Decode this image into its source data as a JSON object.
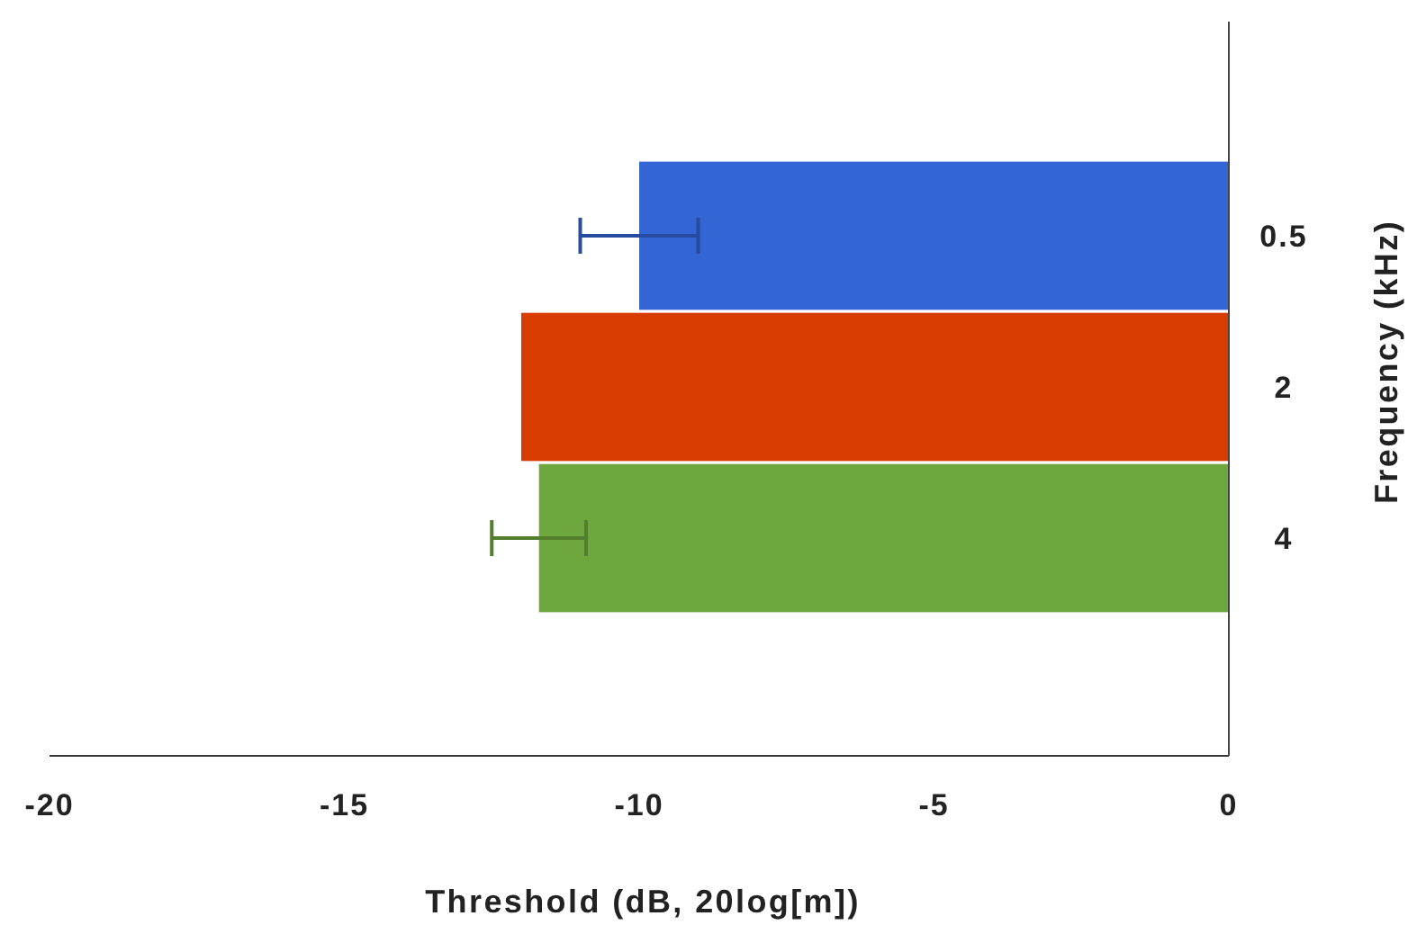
{
  "chart_data": {
    "type": "bar",
    "orientation": "horizontal",
    "categories": [
      "0.5",
      "2",
      "4"
    ],
    "values": [
      -10,
      -12,
      -11.7
    ],
    "colors": [
      "#3465d4",
      "#d83c00",
      "#6ea73d"
    ],
    "errors": [
      1,
      null,
      0.8
    ],
    "xlim": [
      -20,
      0
    ],
    "xticks": [
      -20,
      -15,
      -10,
      -5,
      0
    ],
    "xlabel": "Threshold (dB, 20log[m])",
    "ylabel": "Frequency (kHz)"
  }
}
